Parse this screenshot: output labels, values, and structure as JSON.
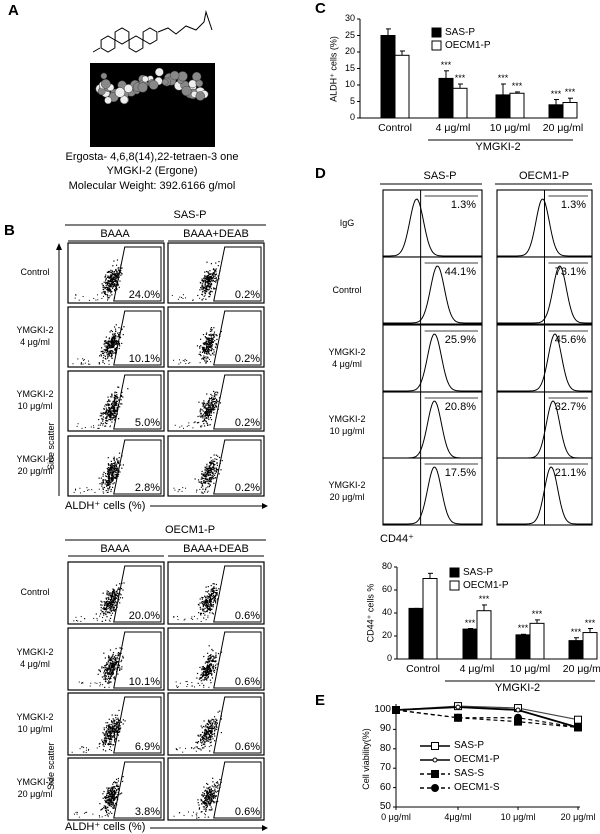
{
  "panels": {
    "A": "A",
    "B": "B",
    "C": "C",
    "D": "D",
    "E": "E"
  },
  "panel_a": {
    "line1": "Ergosta- 4,6,8(14),22-tetraen-3  one",
    "line2": "YMGKI-2 (Ergone)",
    "line3": "Molecular Weight: 392.6166 g/mol"
  },
  "panel_b": {
    "blocks": [
      {
        "cell_line": "SAS-P",
        "conditions": [
          "BAAA",
          "BAAA+DEAB"
        ],
        "rows": [
          {
            "label1": "Control",
            "label2": "",
            "baaa": "24.0%",
            "deab": "0.2%"
          },
          {
            "label1": "YMGKI-2",
            "label2": "4 μg/ml",
            "baaa": "10.1%",
            "deab": "0.2%"
          },
          {
            "label1": "YMGKI-2",
            "label2": "10 μg/ml",
            "baaa": "5.0%",
            "deab": "0.2%"
          },
          {
            "label1": "YMGKI-2",
            "label2": "20 μg/ml",
            "baaa": "2.8%",
            "deab": "0.2%"
          }
        ]
      },
      {
        "cell_line": "OECM1-P",
        "conditions": [
          "BAAA",
          "BAAA+DEAB"
        ],
        "rows": [
          {
            "label1": "Control",
            "label2": "",
            "baaa": "20.0%",
            "deab": "0.6%"
          },
          {
            "label1": "YMGKI-2",
            "label2": "4 μg/ml",
            "baaa": "10.1%",
            "deab": "0.6%"
          },
          {
            "label1": "YMGKI-2",
            "label2": "10 μg/ml",
            "baaa": "6.9%",
            "deab": "0.6%"
          },
          {
            "label1": "YMGKI-2",
            "label2": "20 μg/ml",
            "baaa": "3.8%",
            "deab": "0.6%"
          }
        ]
      }
    ],
    "y_axis": "Side scatter",
    "x_axis": "ALDH⁺ cells (%)"
  },
  "panel_d_hist": {
    "columns": [
      "SAS-P",
      "OECM1-P"
    ],
    "rows": [
      {
        "label1": "IgG",
        "label2": "",
        "sas": "1.3%",
        "oecm": "1.3%"
      },
      {
        "label1": "Control",
        "label2": "",
        "sas": "44.1%",
        "oecm": "73.1%"
      },
      {
        "label1": "YMGKI-2",
        "label2": "4 μg/ml",
        "sas": "25.9%",
        "oecm": "45.6%"
      },
      {
        "label1": "YMGKI-2",
        "label2": "10 μg/ml",
        "sas": "20.8%",
        "oecm": "32.7%"
      },
      {
        "label1": "YMGKI-2",
        "label2": "20 μg/ml",
        "sas": "17.5%",
        "oecm": "21.1%"
      }
    ],
    "x_axis": "CD44⁺"
  },
  "chart_data": [
    {
      "id": "C",
      "type": "bar",
      "categories": [
        "Control",
        "4 μg/ml",
        "10 μg/ml",
        "20 μg/ml"
      ],
      "group_label": "YMGKI-2",
      "ylabel": "ALDH⁺ cells (%)",
      "ylim": [
        0,
        30
      ],
      "yticks": [
        0,
        5,
        10,
        15,
        20,
        25,
        30
      ],
      "legend": "top-center",
      "series": [
        {
          "name": "SAS-P",
          "color": "#000000",
          "values": [
            25,
            12,
            7,
            4
          ],
          "errors": [
            2,
            2.3,
            3.3,
            1.6
          ],
          "sig": [
            "",
            "***",
            "***",
            "***"
          ]
        },
        {
          "name": "OECM1-P",
          "color": "#ffffff",
          "values": [
            19,
            9,
            7.5,
            4.7
          ],
          "errors": [
            1.3,
            1.3,
            0.4,
            1.3
          ],
          "sig": [
            "",
            "***",
            "***",
            "***"
          ]
        }
      ]
    },
    {
      "id": "D",
      "type": "bar",
      "categories": [
        "Control",
        "4 μg/ml",
        "10 μg/ml",
        "20 μg/ml"
      ],
      "group_label": "YMGKI-2",
      "ylabel": "CD44⁺ cells %",
      "ylim": [
        0,
        80
      ],
      "yticks": [
        0,
        20,
        40,
        60,
        80
      ],
      "legend": "top-center",
      "series": [
        {
          "name": "SAS-P",
          "color": "#000000",
          "values": [
            44,
            26,
            21,
            16
          ],
          "errors": [
            0,
            0.5,
            0.5,
            2.5
          ],
          "sig": [
            "",
            "***",
            "***",
            "***"
          ]
        },
        {
          "name": "OECM1-P",
          "color": "#ffffff",
          "values": [
            70,
            42,
            31,
            23
          ],
          "errors": [
            4.5,
            5,
            3,
            3.5
          ],
          "sig": [
            "",
            "***",
            "***",
            "***"
          ]
        }
      ]
    },
    {
      "id": "E",
      "type": "line",
      "categories": [
        "0  μg/ml",
        "4μg/ml",
        "10 μg/ml",
        "20 μg/ml"
      ],
      "ylabel": "Cell viability(%)",
      "ylim": [
        50,
        100
      ],
      "yticks": [
        50,
        60,
        70,
        80,
        90,
        100
      ],
      "legend": "center-left",
      "series": [
        {
          "name": "SAS-P",
          "values": [
            100,
            102,
            101,
            95
          ],
          "marker": "open-square",
          "dash": false
        },
        {
          "name": "OECM1-P",
          "values": [
            100,
            101.5,
            100,
            91
          ],
          "marker": "open-circle",
          "dash": false
        },
        {
          "name": "SAS-S",
          "values": [
            100,
            96,
            94,
            91
          ],
          "marker": "filled-square",
          "dash": true
        },
        {
          "name": "OECM1-S",
          "values": [
            100,
            96,
            96,
            91
          ],
          "marker": "filled-circle",
          "dash": true
        }
      ]
    }
  ]
}
